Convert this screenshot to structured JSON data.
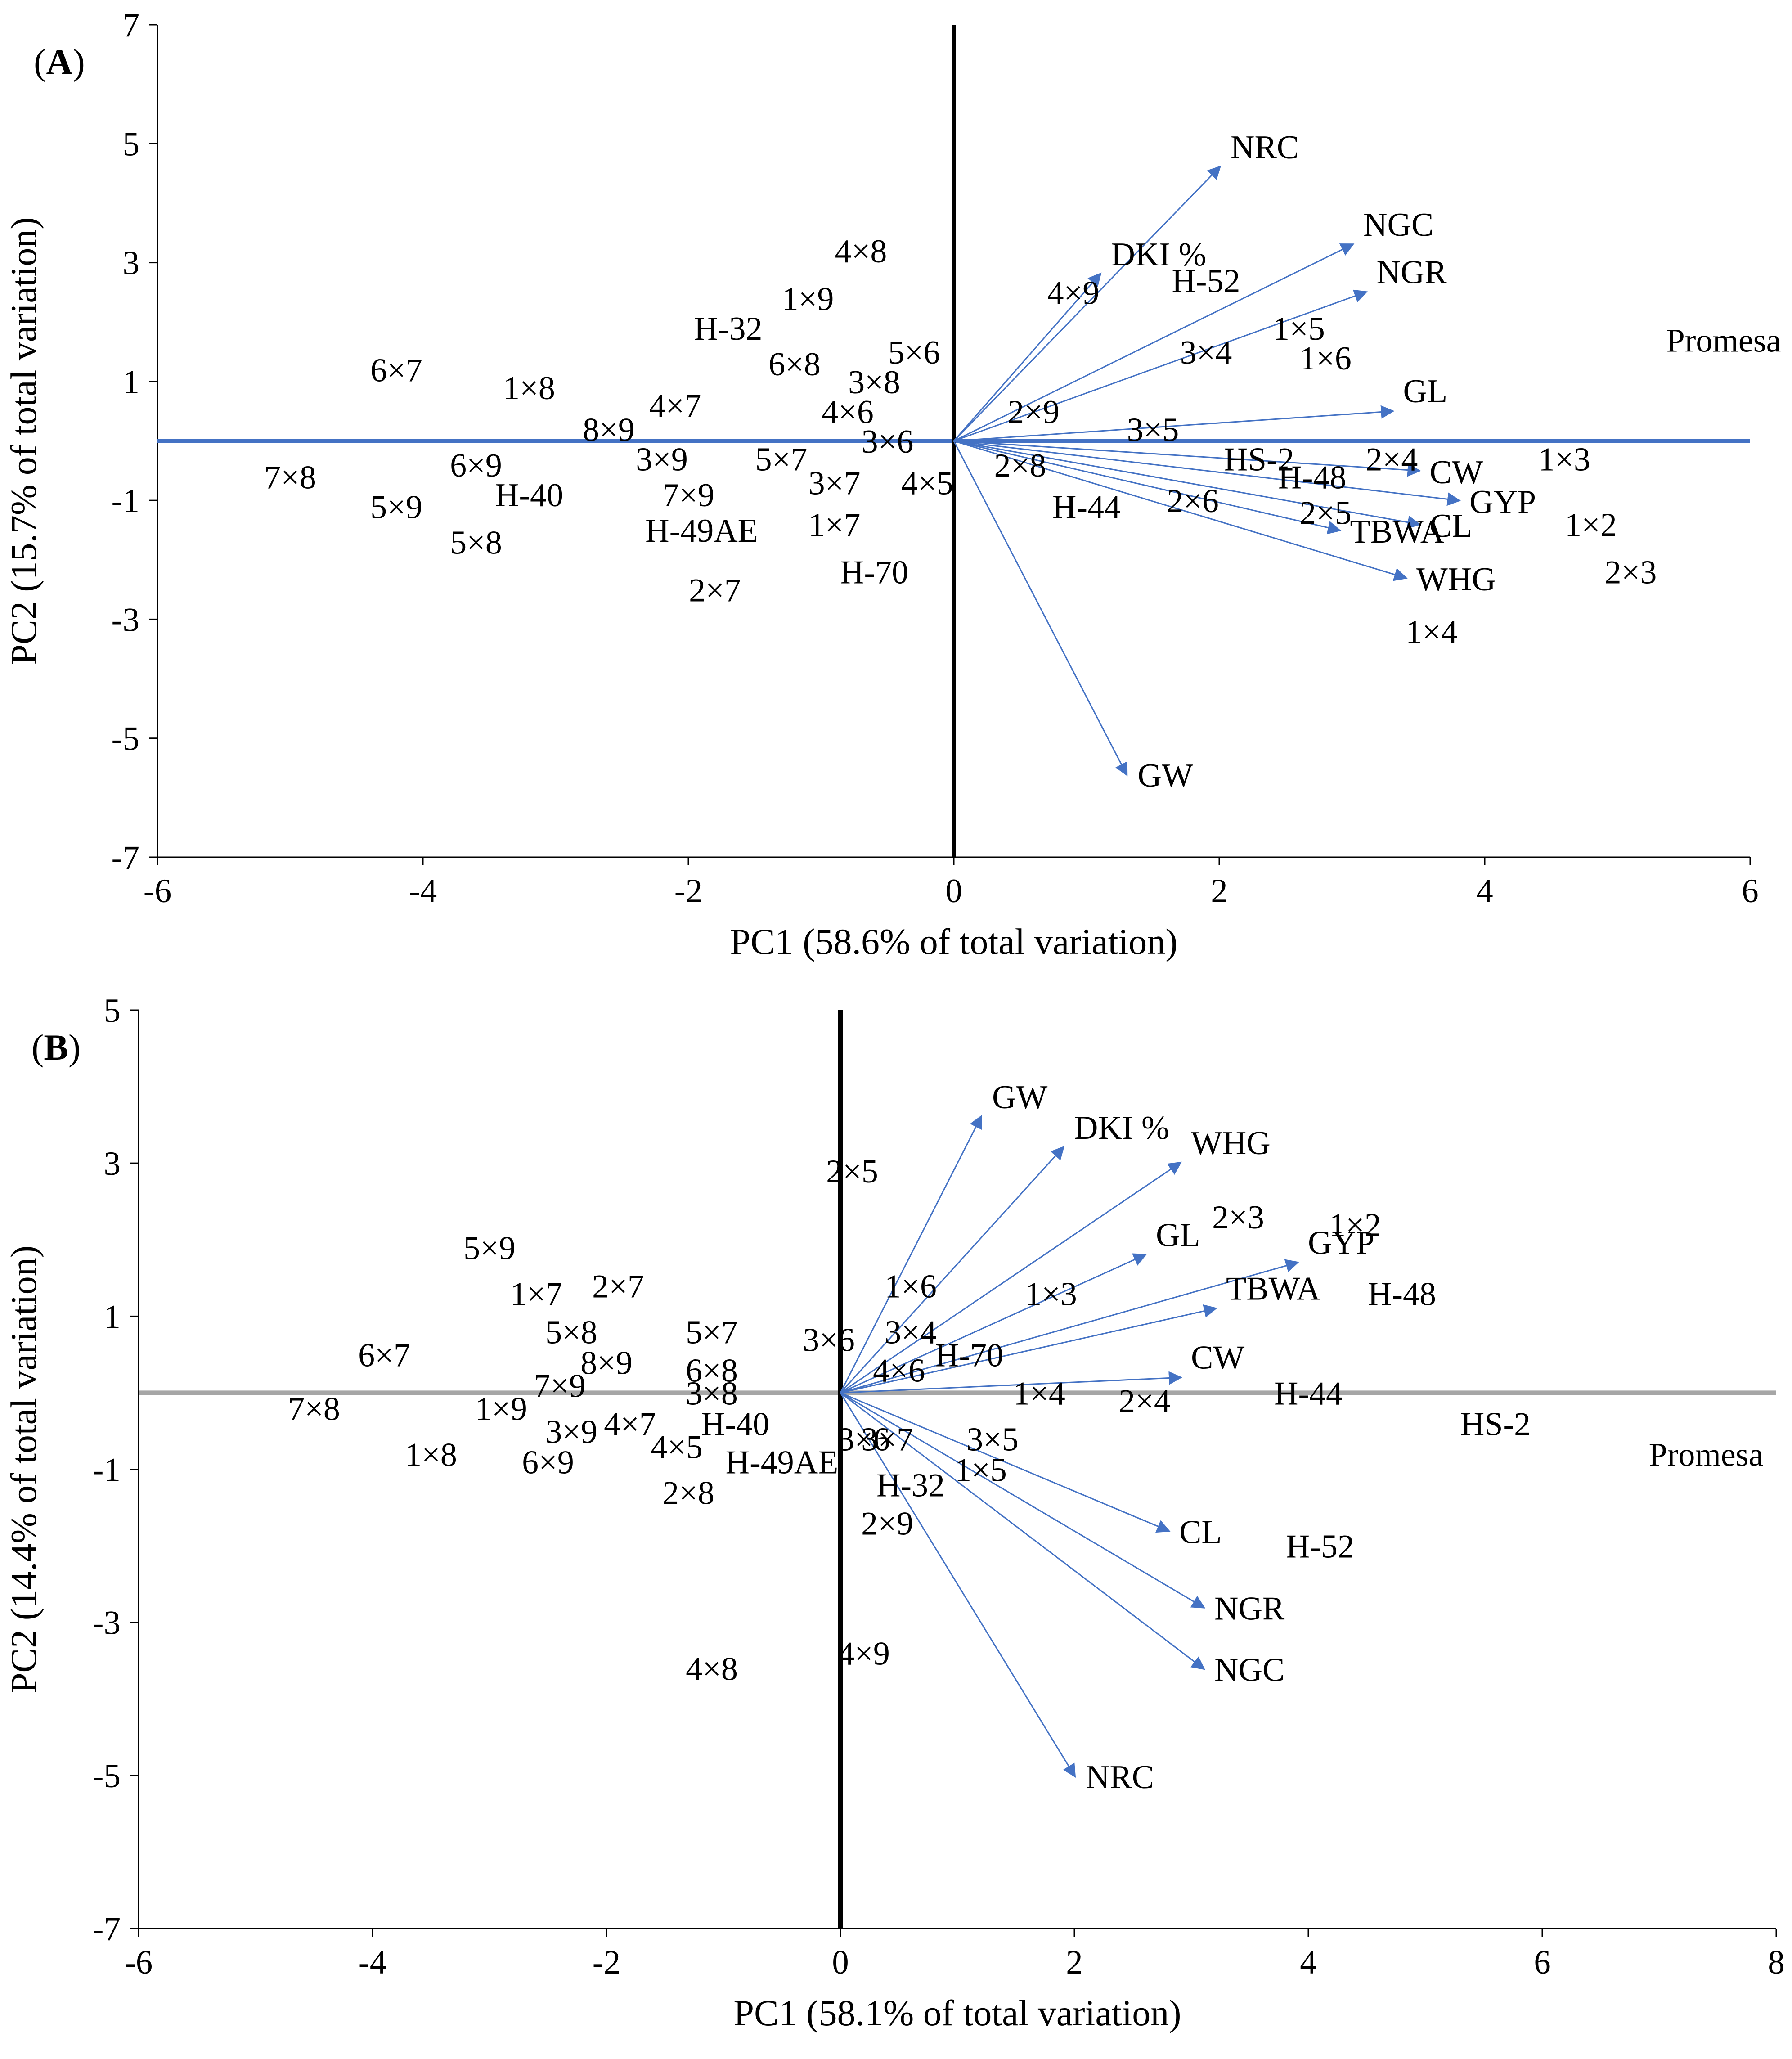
{
  "chart_data": [
    {
      "type": "scatter",
      "panel_label": "A",
      "xlabel": "PC1 (58.6% of total variation)",
      "ylabel": "PC2 (15.7% of total variation)",
      "xlim": [
        -6,
        6
      ],
      "ylim": [
        -7,
        7
      ],
      "xticks": [
        -6,
        -4,
        -2,
        0,
        2,
        4,
        6
      ],
      "yticks": [
        7,
        5,
        3,
        1,
        -1,
        -3,
        -5,
        -7
      ],
      "horizontal_axis_color": "#4472C4",
      "vertical_axis_color": "#000000",
      "vector_color": "#4472C4",
      "points": [
        {
          "label": "6×7",
          "x": -4.2,
          "y": 1.2
        },
        {
          "label": "1×8",
          "x": -3.2,
          "y": 0.9
        },
        {
          "label": "8×9",
          "x": -2.6,
          "y": 0.2
        },
        {
          "label": "4×7",
          "x": -2.1,
          "y": 0.6
        },
        {
          "label": "7×8",
          "x": -5.0,
          "y": -0.6
        },
        {
          "label": "5×9",
          "x": -4.2,
          "y": -1.1
        },
        {
          "label": "6×9",
          "x": -3.6,
          "y": -0.4
        },
        {
          "label": "5×8",
          "x": -3.6,
          "y": -1.7
        },
        {
          "label": "H-40",
          "x": -3.2,
          "y": -0.9
        },
        {
          "label": "3×9",
          "x": -2.2,
          "y": -0.3
        },
        {
          "label": "7×9",
          "x": -2.0,
          "y": -0.9
        },
        {
          "label": "H-49AE",
          "x": -1.9,
          "y": -1.5
        },
        {
          "label": "2×7",
          "x": -1.8,
          "y": -2.5
        },
        {
          "label": "H-32",
          "x": -1.7,
          "y": 1.9
        },
        {
          "label": "4×8",
          "x": -0.7,
          "y": 3.2
        },
        {
          "label": "1×9",
          "x": -1.1,
          "y": 2.4
        },
        {
          "label": "6×8",
          "x": -1.2,
          "y": 1.3
        },
        {
          "label": "3×8",
          "x": -0.6,
          "y": 1.0
        },
        {
          "label": "5×6",
          "x": -0.3,
          "y": 1.5
        },
        {
          "label": "4×6",
          "x": -0.8,
          "y": 0.5
        },
        {
          "label": "3×6",
          "x": -0.5,
          "y": 0.0
        },
        {
          "label": "5×7",
          "x": -1.3,
          "y": -0.3
        },
        {
          "label": "3×7",
          "x": -0.9,
          "y": -0.7
        },
        {
          "label": "4×5",
          "x": -0.2,
          "y": -0.7
        },
        {
          "label": "1×7",
          "x": -0.9,
          "y": -1.4
        },
        {
          "label": "H-70",
          "x": -0.6,
          "y": -2.2
        },
        {
          "label": "4×9",
          "x": 0.9,
          "y": 2.5
        },
        {
          "label": "H-52",
          "x": 1.9,
          "y": 2.7
        },
        {
          "label": "2×9",
          "x": 0.6,
          "y": 0.5
        },
        {
          "label": "2×8",
          "x": 0.5,
          "y": -0.4
        },
        {
          "label": "3×4",
          "x": 1.9,
          "y": 1.5
        },
        {
          "label": "1×5",
          "x": 2.6,
          "y": 1.9
        },
        {
          "label": "1×6",
          "x": 2.8,
          "y": 1.4
        },
        {
          "label": "3×5",
          "x": 1.5,
          "y": 0.2
        },
        {
          "label": "HS-2",
          "x": 2.3,
          "y": -0.3
        },
        {
          "label": "H-48",
          "x": 2.7,
          "y": -0.6
        },
        {
          "label": "2×4",
          "x": 3.3,
          "y": -0.3
        },
        {
          "label": "H-44",
          "x": 1.0,
          "y": -1.1
        },
        {
          "label": "2×6",
          "x": 1.8,
          "y": -1.0
        },
        {
          "label": "2×5",
          "x": 2.8,
          "y": -1.2
        },
        {
          "label": "1×3",
          "x": 4.6,
          "y": -0.3
        },
        {
          "label": "1×2",
          "x": 4.8,
          "y": -1.4
        },
        {
          "label": "2×3",
          "x": 5.1,
          "y": -2.2
        },
        {
          "label": "1×4",
          "x": 3.6,
          "y": -3.2
        },
        {
          "label": "Promesa",
          "x": 5.8,
          "y": 1.7
        }
      ],
      "vectors": [
        {
          "label": "NRC",
          "x": 2.0,
          "y": 4.6
        },
        {
          "label": "NGC",
          "x": 3.0,
          "y": 3.3
        },
        {
          "label": "NGR",
          "x": 3.1,
          "y": 2.5
        },
        {
          "label": "DKI %",
          "x": 1.1,
          "y": 2.8
        },
        {
          "label": "GL",
          "x": 3.3,
          "y": 0.5
        },
        {
          "label": "CW",
          "x": 3.5,
          "y": -0.5
        },
        {
          "label": "GYP",
          "x": 3.8,
          "y": -1.0
        },
        {
          "label": "CL",
          "x": 3.5,
          "y": -1.4
        },
        {
          "label": "TBWA",
          "x": 2.9,
          "y": -1.5
        },
        {
          "label": "WHG",
          "x": 3.4,
          "y": -2.3
        },
        {
          "label": "GW",
          "x": 1.3,
          "y": -5.6
        }
      ]
    },
    {
      "type": "scatter",
      "panel_label": "B",
      "xlabel": "PC1 (58.1% of total variation)",
      "ylabel": "PC2 (14.4% of total variation)",
      "xlim": [
        -6,
        8
      ],
      "ylim": [
        -7,
        5
      ],
      "xticks": [
        -6,
        -4,
        -2,
        0,
        2,
        4,
        6,
        8
      ],
      "yticks": [
        5,
        3,
        1,
        -1,
        -3,
        -5,
        -7
      ],
      "horizontal_axis_color": "#A6A6A6",
      "vertical_axis_color": "#000000",
      "vector_color": "#4472C4",
      "points": [
        {
          "label": "5×9",
          "x": -3.0,
          "y": 1.9
        },
        {
          "label": "1×7",
          "x": -2.6,
          "y": 1.3
        },
        {
          "label": "2×7",
          "x": -1.9,
          "y": 1.4
        },
        {
          "label": "5×8",
          "x": -2.3,
          "y": 0.8
        },
        {
          "label": "6×7",
          "x": -3.9,
          "y": 0.5
        },
        {
          "label": "8×9",
          "x": -2.0,
          "y": 0.4
        },
        {
          "label": "7×9",
          "x": -2.4,
          "y": 0.1
        },
        {
          "label": "7×8",
          "x": -4.5,
          "y": -0.2
        },
        {
          "label": "1×9",
          "x": -2.9,
          "y": -0.2
        },
        {
          "label": "3×9",
          "x": -2.3,
          "y": -0.5
        },
        {
          "label": "4×7",
          "x": -1.8,
          "y": -0.4
        },
        {
          "label": "1×8",
          "x": -3.5,
          "y": -0.8
        },
        {
          "label": "6×9",
          "x": -2.5,
          "y": -0.9
        },
        {
          "label": "4×5",
          "x": -1.4,
          "y": -0.7
        },
        {
          "label": "H-40",
          "x": -0.9,
          "y": -0.4
        },
        {
          "label": "H-49AE",
          "x": -0.5,
          "y": -0.9
        },
        {
          "label": "2×8",
          "x": -1.3,
          "y": -1.3
        },
        {
          "label": "5×7",
          "x": -1.1,
          "y": 0.8
        },
        {
          "label": "6×8",
          "x": -1.1,
          "y": 0.3
        },
        {
          "label": "3×8",
          "x": -1.1,
          "y": 0.0
        },
        {
          "label": "3×6",
          "x": -0.1,
          "y": 0.7
        },
        {
          "label": "4×8",
          "x": -1.1,
          "y": -3.6
        },
        {
          "label": "2×5",
          "x": 0.1,
          "y": 2.9
        },
        {
          "label": "1×6",
          "x": 0.6,
          "y": 1.4
        },
        {
          "label": "3×4",
          "x": 0.6,
          "y": 0.8
        },
        {
          "label": "4×6",
          "x": 0.5,
          "y": 0.3
        },
        {
          "label": "H-70",
          "x": 1.1,
          "y": 0.5
        },
        {
          "label": "3×6",
          "x": 0.2,
          "y": -0.6
        },
        {
          "label": "3×7",
          "x": 0.4,
          "y": -0.6
        },
        {
          "label": "3×5",
          "x": 1.3,
          "y": -0.6
        },
        {
          "label": "1×5",
          "x": 1.2,
          "y": -1.0
        },
        {
          "label": "H-32",
          "x": 0.6,
          "y": -1.2
        },
        {
          "label": "2×9",
          "x": 0.4,
          "y": -1.7
        },
        {
          "label": "4×9",
          "x": 0.2,
          "y": -3.4
        },
        {
          "label": "1×3",
          "x": 1.8,
          "y": 1.3
        },
        {
          "label": "1×4",
          "x": 1.7,
          "y": 0.0
        },
        {
          "label": "2×4",
          "x": 2.6,
          "y": -0.1
        },
        {
          "label": "2×3",
          "x": 3.4,
          "y": 2.3
        },
        {
          "label": "1×2",
          "x": 4.4,
          "y": 2.2
        },
        {
          "label": "H-48",
          "x": 4.8,
          "y": 1.3
        },
        {
          "label": "H-44",
          "x": 4.0,
          "y": 0.0
        },
        {
          "label": "HS-2",
          "x": 5.6,
          "y": -0.4
        },
        {
          "label": "H-52",
          "x": 4.1,
          "y": -2.0
        },
        {
          "label": "Promesa",
          "x": 7.4,
          "y": -0.8
        }
      ],
      "vectors": [
        {
          "label": "GW",
          "x": 1.2,
          "y": 3.6
        },
        {
          "label": "DKI %",
          "x": 1.9,
          "y": 3.2
        },
        {
          "label": "WHG",
          "x": 2.9,
          "y": 3.0
        },
        {
          "label": "GL",
          "x": 2.6,
          "y": 1.8
        },
        {
          "label": "GYP",
          "x": 3.9,
          "y": 1.7
        },
        {
          "label": "TBWA",
          "x": 3.2,
          "y": 1.1
        },
        {
          "label": "CW",
          "x": 2.9,
          "y": 0.2
        },
        {
          "label": "CL",
          "x": 2.8,
          "y": -1.8
        },
        {
          "label": "NGR",
          "x": 3.1,
          "y": -2.8
        },
        {
          "label": "NGC",
          "x": 3.1,
          "y": -3.6
        },
        {
          "label": "NRC",
          "x": 2.0,
          "y": -5.0
        }
      ]
    }
  ]
}
